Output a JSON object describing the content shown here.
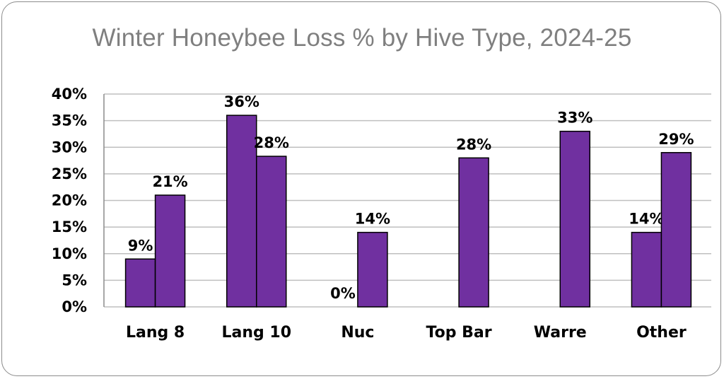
{
  "chart_data": {
    "type": "bar",
    "title": "Winter Honeybee Loss % by Hive Type, 2024-25",
    "xlabel": "",
    "ylabel": "",
    "categories": [
      "Lang 8",
      "Lang 10",
      "Nuc",
      "Top Bar",
      "Warre",
      "Other"
    ],
    "series": [
      {
        "values": [
          9,
          36,
          0,
          null,
          null,
          14
        ],
        "labels": [
          "9%",
          "36%",
          "0%",
          "",
          "",
          "14%"
        ]
      },
      {
        "values": [
          21,
          28.3,
          14,
          28,
          33,
          29
        ],
        "labels": [
          "21%",
          "28%",
          "14%",
          "28%",
          "33%",
          "29%"
        ]
      }
    ],
    "ylim": [
      0,
      40
    ],
    "yticks": [
      0,
      5,
      10,
      15,
      20,
      25,
      30,
      35,
      40
    ],
    "ytick_labels": [
      "0%",
      "5%",
      "10%",
      "15%",
      "20%",
      "25%",
      "30%",
      "35%",
      "40%"
    ],
    "grid": true,
    "legend": "none",
    "colors": {
      "bar": "#7030a0",
      "bar_edge": "#000000",
      "grid": "#bfbfbf",
      "title": "#7f7f7f"
    }
  }
}
